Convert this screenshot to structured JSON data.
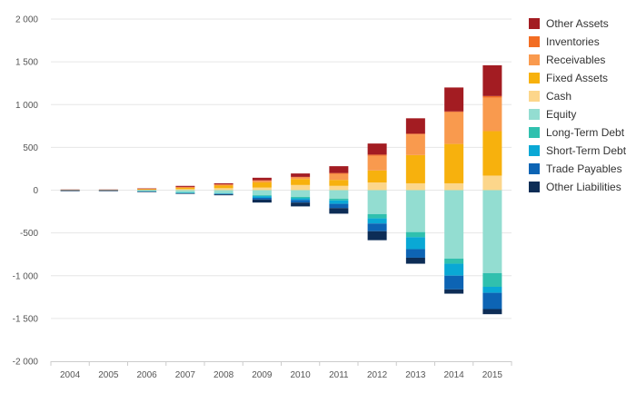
{
  "chart_data": {
    "type": "bar",
    "stacked": true,
    "title": "",
    "xlabel": "",
    "ylabel": "",
    "ylim": [
      -2000,
      2000
    ],
    "yticks": [
      2000,
      1500,
      1000,
      500,
      0,
      -500,
      -1000,
      -1500,
      -2000
    ],
    "ytick_labels": [
      "2 000",
      "1 500",
      "1 000",
      "500",
      "0",
      "-500",
      "-1 000",
      "-1 500",
      "-2 000"
    ],
    "grid": true,
    "legend_position": "right",
    "categories": [
      "2004",
      "2005",
      "2006",
      "2007",
      "2008",
      "2009",
      "2010",
      "2011",
      "2012",
      "2013",
      "2014",
      "2015"
    ],
    "series": [
      {
        "name": "Other Assets",
        "color": "#a31c22",
        "values": [
          1,
          1,
          2,
          12,
          12,
          30,
          40,
          80,
          130,
          180,
          280,
          360
        ]
      },
      {
        "name": "Inventories",
        "color": "#f26d23",
        "values": [
          1,
          1,
          2,
          3,
          5,
          5,
          5,
          10,
          15,
          10,
          10,
          20
        ]
      },
      {
        "name": "Receivables",
        "color": "#f99a4e",
        "values": [
          1,
          1,
          4,
          8,
          10,
          20,
          20,
          70,
          170,
          240,
          370,
          390
        ]
      },
      {
        "name": "Fixed Assets",
        "color": "#f7b10d",
        "values": [
          3,
          3,
          8,
          15,
          30,
          60,
          70,
          70,
          140,
          330,
          460,
          520
        ]
      },
      {
        "name": "Cash",
        "color": "#fcd68b",
        "values": [
          1,
          1,
          4,
          12,
          23,
          30,
          60,
          50,
          90,
          80,
          80,
          170
        ]
      },
      {
        "name": "Equity",
        "color": "#93ddd1",
        "values": [
          -3,
          -3,
          -8,
          -25,
          -35,
          -60,
          -80,
          -100,
          -280,
          -490,
          -800,
          -970
        ]
      },
      {
        "name": "Long-Term Debt",
        "color": "#30c0ae",
        "values": [
          -1,
          -1,
          -4,
          -6,
          -5,
          -10,
          -15,
          -20,
          -50,
          -60,
          -60,
          -160
        ]
      },
      {
        "name": "Short-Term Debt",
        "color": "#0aa8d5",
        "values": [
          -1,
          -1,
          -3,
          -5,
          -5,
          -20,
          -20,
          -40,
          -60,
          -140,
          -140,
          -70
        ]
      },
      {
        "name": "Trade Payables",
        "color": "#0d64b4",
        "values": [
          -1,
          -1,
          -2,
          -2,
          -5,
          -20,
          -30,
          -50,
          -90,
          -100,
          -160,
          -190
        ]
      },
      {
        "name": "Other Liabilities",
        "color": "#0d2d56",
        "values": [
          -1,
          -1,
          -2,
          -2,
          -10,
          -35,
          -45,
          -65,
          -105,
          -70,
          -50,
          -60
        ]
      }
    ]
  }
}
